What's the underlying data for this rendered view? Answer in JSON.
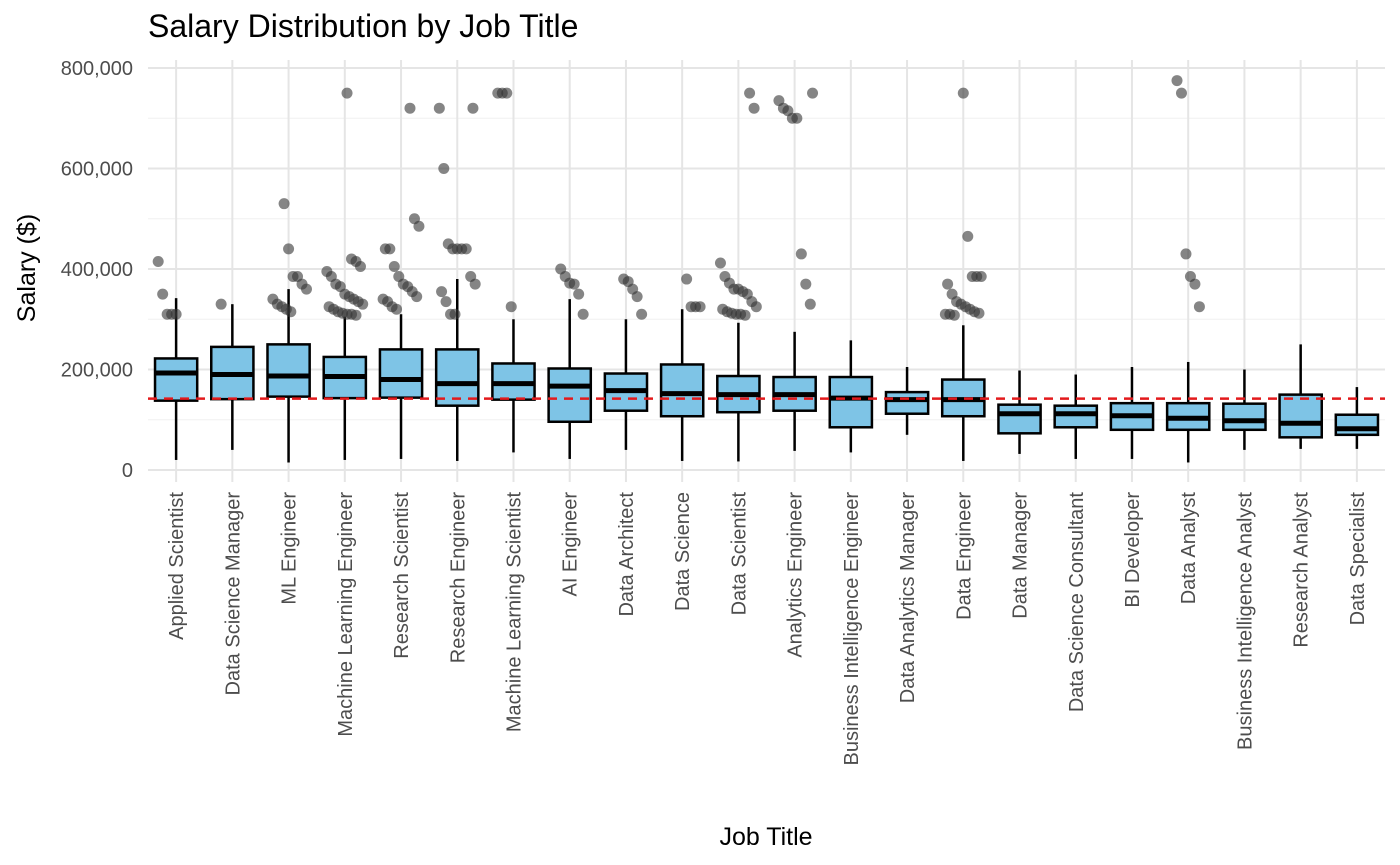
{
  "chart_data": {
    "type": "box",
    "title": "Salary Distribution by Job Title",
    "xlabel": "Job Title",
    "ylabel": "Salary ($)",
    "ylim": [
      -15000,
      805000
    ],
    "y_ticks": [
      0,
      200000,
      400000,
      600000,
      800000
    ],
    "y_tick_labels": [
      "0",
      "200,000",
      "400,000",
      "600,000",
      "800,000"
    ],
    "grid": true,
    "reference_line": {
      "value": 142000,
      "style": "dashed",
      "color": "#e31a1c"
    },
    "box_fill": "#7ec4e6",
    "box_stroke": "#000000",
    "point_color": "#333333",
    "categories": [
      {
        "name": "Applied Scientist",
        "whisker_low": 20000,
        "q1": 138000,
        "median": 193000,
        "q3": 222000,
        "whisker_high": 342000,
        "outliers": [
          415000,
          350000,
          310000,
          310000,
          310000
        ]
      },
      {
        "name": "Data Science Manager",
        "whisker_low": 40000,
        "q1": 141000,
        "median": 190000,
        "q3": 245000,
        "whisker_high": 330000,
        "outliers": [
          330000
        ]
      },
      {
        "name": "ML Engineer",
        "whisker_low": 15000,
        "q1": 146000,
        "median": 187000,
        "q3": 250000,
        "whisker_high": 360000,
        "outliers": [
          530000,
          440000,
          385000,
          385000,
          370000,
          360000,
          340000,
          330000,
          325000,
          320000,
          315000
        ]
      },
      {
        "name": "Machine Learning Engineer",
        "whisker_low": 20000,
        "q1": 143000,
        "median": 186000,
        "q3": 225000,
        "whisker_high": 305000,
        "outliers": [
          750000,
          420000,
          415000,
          405000,
          395000,
          385000,
          370000,
          365000,
          350000,
          345000,
          340000,
          335000,
          330000,
          325000,
          320000,
          315000,
          312000,
          310000,
          310000,
          308000
        ]
      },
      {
        "name": "Research Scientist",
        "whisker_low": 22000,
        "q1": 144000,
        "median": 180000,
        "q3": 240000,
        "whisker_high": 310000,
        "outliers": [
          720000,
          500000,
          485000,
          440000,
          440000,
          405000,
          385000,
          370000,
          365000,
          355000,
          345000,
          340000,
          335000,
          325000,
          320000
        ]
      },
      {
        "name": "Research Engineer",
        "whisker_low": 18000,
        "q1": 128000,
        "median": 172000,
        "q3": 240000,
        "whisker_high": 380000,
        "outliers": [
          720000,
          720000,
          600000,
          450000,
          440000,
          440000,
          440000,
          440000,
          385000,
          370000,
          355000,
          335000,
          310000,
          310000
        ]
      },
      {
        "name": "Machine Learning Scientist",
        "whisker_low": 35000,
        "q1": 140000,
        "median": 172000,
        "q3": 212000,
        "whisker_high": 300000,
        "outliers": [
          750000,
          750000,
          750000,
          325000
        ]
      },
      {
        "name": "AI Engineer",
        "whisker_low": 22000,
        "q1": 96000,
        "median": 167000,
        "q3": 202000,
        "whisker_high": 340000,
        "outliers": [
          400000,
          385000,
          372000,
          370000,
          350000,
          310000
        ]
      },
      {
        "name": "Data Architect",
        "whisker_low": 40000,
        "q1": 118000,
        "median": 158000,
        "q3": 192000,
        "whisker_high": 300000,
        "outliers": [
          380000,
          375000,
          360000,
          345000,
          310000
        ]
      },
      {
        "name": "Data Science",
        "whisker_low": 18000,
        "q1": 107000,
        "median": 152000,
        "q3": 210000,
        "whisker_high": 320000,
        "outliers": [
          380000,
          325000,
          325000,
          325000
        ]
      },
      {
        "name": "Data Scientist",
        "whisker_low": 17000,
        "q1": 115000,
        "median": 150000,
        "q3": 187000,
        "whisker_high": 293000,
        "outliers": [
          750000,
          720000,
          412000,
          385000,
          372000,
          360000,
          360000,
          355000,
          350000,
          335000,
          325000,
          320000,
          315000,
          312000,
          310000,
          310000,
          308000
        ]
      },
      {
        "name": "Analytics Engineer",
        "whisker_low": 38000,
        "q1": 118000,
        "median": 150000,
        "q3": 185000,
        "whisker_high": 275000,
        "outliers": [
          750000,
          735000,
          720000,
          715000,
          700000,
          700000,
          430000,
          370000,
          330000
        ]
      },
      {
        "name": "Business Intelligence Engineer",
        "whisker_low": 35000,
        "q1": 85000,
        "median": 143000,
        "q3": 185000,
        "whisker_high": 258000,
        "outliers": []
      },
      {
        "name": "Data Analytics Manager",
        "whisker_low": 70000,
        "q1": 112000,
        "median": 140000,
        "q3": 155000,
        "whisker_high": 205000,
        "outliers": []
      },
      {
        "name": "Data Engineer",
        "whisker_low": 18000,
        "q1": 107000,
        "median": 140000,
        "q3": 180000,
        "whisker_high": 288000,
        "outliers": [
          750000,
          465000,
          385000,
          385000,
          385000,
          370000,
          350000,
          335000,
          330000,
          325000,
          320000,
          315000,
          312000,
          310000,
          310000,
          308000
        ]
      },
      {
        "name": "Data Manager",
        "whisker_low": 32000,
        "q1": 73000,
        "median": 112000,
        "q3": 130000,
        "whisker_high": 198000,
        "outliers": []
      },
      {
        "name": "Data Science Consultant",
        "whisker_low": 22000,
        "q1": 85000,
        "median": 112000,
        "q3": 128000,
        "whisker_high": 190000,
        "outliers": []
      },
      {
        "name": "BI Developer",
        "whisker_low": 22000,
        "q1": 80000,
        "median": 108000,
        "q3": 133000,
        "whisker_high": 205000,
        "outliers": []
      },
      {
        "name": "Data Analyst",
        "whisker_low": 15000,
        "q1": 80000,
        "median": 103000,
        "q3": 133000,
        "whisker_high": 215000,
        "outliers": [
          775000,
          750000,
          430000,
          385000,
          370000,
          325000
        ]
      },
      {
        "name": "Business Intelligence Analyst",
        "whisker_low": 40000,
        "q1": 80000,
        "median": 98000,
        "q3": 132000,
        "whisker_high": 200000,
        "outliers": []
      },
      {
        "name": "Research Analyst",
        "whisker_low": 42000,
        "q1": 65000,
        "median": 93000,
        "q3": 150000,
        "whisker_high": 250000,
        "outliers": []
      },
      {
        "name": "Data Specialist",
        "whisker_low": 42000,
        "q1": 70000,
        "median": 82000,
        "q3": 110000,
        "whisker_high": 165000,
        "outliers": []
      }
    ]
  }
}
